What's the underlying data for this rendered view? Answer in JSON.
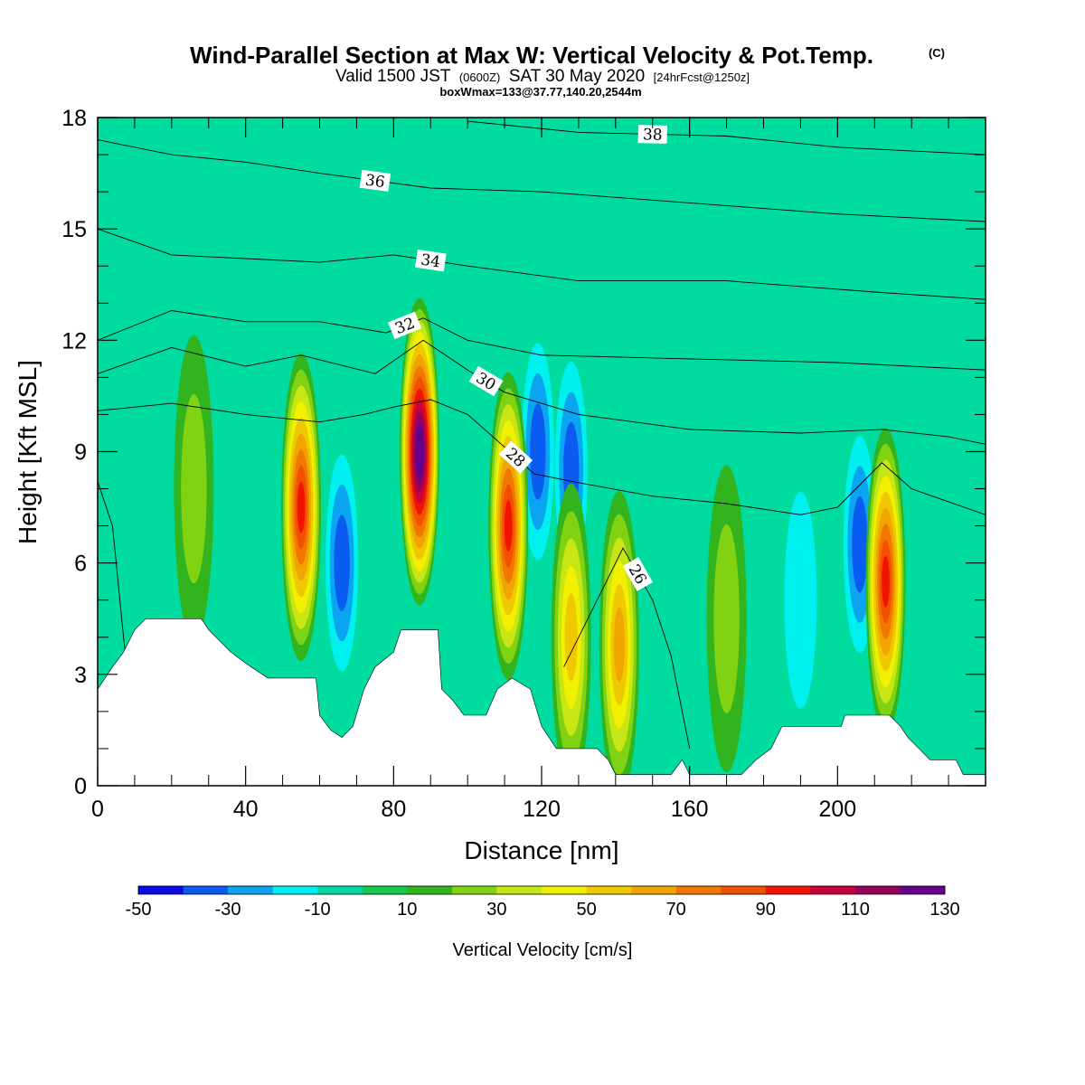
{
  "title": {
    "main": "Wind-Parallel Section at Max W: Vertical Velocity & Pot.Temp.",
    "copyright": "(C)",
    "valid_prefix": "Valid 1500 JST",
    "valid_utc": "(0600Z)",
    "valid_date": "SAT 30 May 2020",
    "forecast": "[24hrFcst@1250z]",
    "boxwmax": "boxWmax=133@37.77,140.20,2544m"
  },
  "chart_data": {
    "type": "heatmap",
    "xlabel": "Distance [nm]",
    "ylabel": "Height [Kft MSL]",
    "xlim": [
      0,
      240
    ],
    "ylim": [
      0,
      18
    ],
    "x_ticks": [
      0,
      40,
      80,
      120,
      160,
      200
    ],
    "y_ticks": [
      0,
      3,
      6,
      9,
      12,
      15,
      18
    ],
    "colorbar": {
      "label": "Vertical Velocity [cm/s]",
      "bounds": [
        -50,
        -40,
        -30,
        -20,
        -10,
        0,
        10,
        20,
        30,
        40,
        50,
        60,
        70,
        80,
        90,
        100,
        110,
        120,
        130
      ],
      "tick_labels": [
        "-50",
        "-30",
        "-10",
        "10",
        "30",
        "50",
        "70",
        "90",
        "110",
        "130"
      ],
      "colors": [
        "#0a0ae6",
        "#0a5cf0",
        "#0aa4f0",
        "#00f0f0",
        "#00dca0",
        "#14c850",
        "#32b41e",
        "#82d214",
        "#c8e614",
        "#f0f000",
        "#f0c800",
        "#f0a500",
        "#f07800",
        "#f05000",
        "#f01400",
        "#c8003c",
        "#96005a",
        "#64008c"
      ]
    },
    "background_value_cm_s": 0,
    "updrafts": [
      {
        "x_nm": 55,
        "z_kft": 7.5,
        "peak_w_cm_s": 90
      },
      {
        "x_nm": 87,
        "z_kft": 9.0,
        "peak_w_cm_s": 133
      },
      {
        "x_nm": 111,
        "z_kft": 7.0,
        "peak_w_cm_s": 90
      },
      {
        "x_nm": 128,
        "z_kft": 4.0,
        "peak_w_cm_s": 50
      },
      {
        "x_nm": 141,
        "z_kft": 3.8,
        "peak_w_cm_s": 60
      },
      {
        "x_nm": 213,
        "z_kft": 5.5,
        "peak_w_cm_s": 90
      },
      {
        "x_nm": 26,
        "z_kft": 8.0,
        "peak_w_cm_s": 25
      },
      {
        "x_nm": 170,
        "z_kft": 4.5,
        "peak_w_cm_s": 25
      }
    ],
    "downdrafts": [
      {
        "x_nm": 66,
        "z_kft": 6.0,
        "min_w_cm_s": -35
      },
      {
        "x_nm": 128,
        "z_kft": 8.5,
        "min_w_cm_s": -35
      },
      {
        "x_nm": 119,
        "z_kft": 9.0,
        "min_w_cm_s": -30
      },
      {
        "x_nm": 206,
        "z_kft": 6.5,
        "min_w_cm_s": -35
      },
      {
        "x_nm": 190,
        "z_kft": 5.0,
        "min_w_cm_s": -15
      }
    ],
    "theta_contours": [
      {
        "value": 26,
        "points": [
          [
            0,
            8.2
          ],
          [
            4,
            7
          ],
          [
            6,
            5
          ],
          [
            8,
            3
          ]
        ],
        "label": null
      },
      {
        "value": 26,
        "points": [
          [
            126,
            3.2
          ],
          [
            135,
            5
          ],
          [
            142,
            6.4
          ],
          [
            150,
            5
          ],
          [
            155,
            3.5
          ],
          [
            160,
            1
          ]
        ],
        "label": "26"
      },
      {
        "value": 28,
        "points": [
          [
            0,
            10.1
          ],
          [
            20,
            10.3
          ],
          [
            40,
            10.0
          ],
          [
            60,
            9.8
          ],
          [
            72,
            10.0
          ],
          [
            80,
            10.2
          ],
          [
            90,
            10.4
          ],
          [
            100,
            10.0
          ],
          [
            108,
            9.3
          ],
          [
            118,
            8.4
          ],
          [
            128,
            8.2
          ],
          [
            150,
            7.8
          ],
          [
            170,
            7.6
          ],
          [
            190,
            7.3
          ],
          [
            200,
            7.5
          ],
          [
            212,
            8.7
          ],
          [
            220,
            8.0
          ],
          [
            240,
            7.3
          ]
        ],
        "label": "28"
      },
      {
        "value": 30,
        "points": [
          [
            0,
            11.1
          ],
          [
            20,
            11.8
          ],
          [
            40,
            11.3
          ],
          [
            55,
            11.6
          ],
          [
            75,
            11.1
          ],
          [
            88,
            12.0
          ],
          [
            100,
            11.2
          ],
          [
            110,
            10.6
          ],
          [
            130,
            10.0
          ],
          [
            160,
            9.6
          ],
          [
            190,
            9.5
          ],
          [
            212,
            9.6
          ],
          [
            230,
            9.4
          ],
          [
            240,
            9.2
          ]
        ],
        "label": "30"
      },
      {
        "value": 32,
        "points": [
          [
            0,
            12.0
          ],
          [
            20,
            12.8
          ],
          [
            40,
            12.5
          ],
          [
            60,
            12.5
          ],
          [
            78,
            12.2
          ],
          [
            88,
            12.6
          ],
          [
            100,
            12.0
          ],
          [
            120,
            11.6
          ],
          [
            160,
            11.5
          ],
          [
            200,
            11.4
          ],
          [
            240,
            11.2
          ]
        ],
        "label": "32"
      },
      {
        "value": 34,
        "points": [
          [
            0,
            15.0
          ],
          [
            20,
            14.3
          ],
          [
            40,
            14.2
          ],
          [
            60,
            14.1
          ],
          [
            80,
            14.3
          ],
          [
            100,
            14.0
          ],
          [
            130,
            13.6
          ],
          [
            170,
            13.6
          ],
          [
            210,
            13.3
          ],
          [
            240,
            13.1
          ]
        ],
        "label": "34"
      },
      {
        "value": 36,
        "points": [
          [
            0,
            17.4
          ],
          [
            20,
            17.0
          ],
          [
            40,
            16.8
          ],
          [
            60,
            16.5
          ],
          [
            90,
            16.1
          ],
          [
            120,
            16.0
          ],
          [
            160,
            15.7
          ],
          [
            200,
            15.4
          ],
          [
            240,
            15.2
          ]
        ],
        "label": "36"
      },
      {
        "value": 38,
        "points": [
          [
            100,
            17.9
          ],
          [
            130,
            17.6
          ],
          [
            170,
            17.5
          ],
          [
            200,
            17.2
          ],
          [
            240,
            17.0
          ]
        ],
        "label": "38"
      }
    ],
    "terrain_kft": [
      [
        0,
        2.6
      ],
      [
        4,
        3.2
      ],
      [
        7,
        3.6
      ],
      [
        10,
        4.2
      ],
      [
        13,
        4.5
      ],
      [
        28,
        4.5
      ],
      [
        30,
        4.2
      ],
      [
        33,
        3.9
      ],
      [
        36,
        3.6
      ],
      [
        40,
        3.3
      ],
      [
        46,
        2.9
      ],
      [
        59,
        2.9
      ],
      [
        60,
        1.9
      ],
      [
        63,
        1.5
      ],
      [
        66,
        1.3
      ],
      [
        69,
        1.6
      ],
      [
        72,
        2.6
      ],
      [
        75,
        3.2
      ],
      [
        80,
        3.6
      ],
      [
        82,
        4.2
      ],
      [
        92,
        4.2
      ],
      [
        93,
        2.6
      ],
      [
        96,
        2.3
      ],
      [
        99,
        1.9
      ],
      [
        105,
        1.9
      ],
      [
        108,
        2.6
      ],
      [
        112,
        2.9
      ],
      [
        117,
        2.6
      ],
      [
        120,
        1.6
      ],
      [
        124,
        1.0
      ],
      [
        135,
        1.0
      ],
      [
        138,
        0.7
      ],
      [
        140,
        0.3
      ],
      [
        155,
        0.3
      ],
      [
        158,
        0.7
      ],
      [
        160,
        0.3
      ],
      [
        174,
        0.3
      ],
      [
        178,
        0.7
      ],
      [
        182,
        1.0
      ],
      [
        185,
        1.6
      ],
      [
        201,
        1.6
      ],
      [
        202,
        1.9
      ],
      [
        214,
        1.9
      ],
      [
        217,
        1.6
      ],
      [
        219,
        1.3
      ],
      [
        222,
        1.0
      ],
      [
        225,
        0.7
      ],
      [
        232,
        0.7
      ],
      [
        234,
        0.3
      ],
      [
        240,
        0.3
      ]
    ]
  }
}
